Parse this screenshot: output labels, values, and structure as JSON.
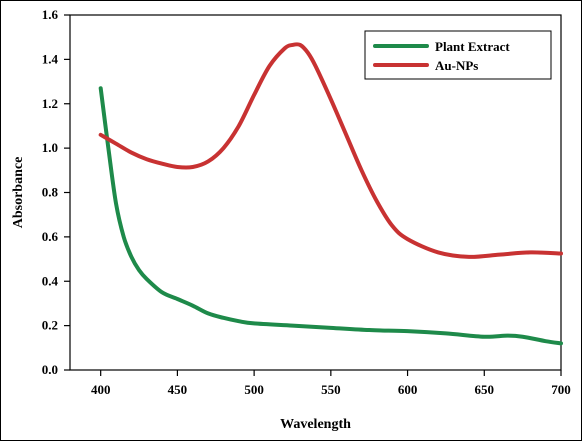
{
  "chart_data": {
    "type": "line",
    "xlabel": "Wavelength",
    "ylabel": "Absorbance",
    "xlim": [
      380,
      700
    ],
    "ylim": [
      0.0,
      1.6
    ],
    "x_ticks": [
      "400",
      "450",
      "500",
      "550",
      "600",
      "650",
      "700"
    ],
    "y_ticks": [
      "0.0",
      "0.2",
      "0.4",
      "0.6",
      "0.8",
      "1.0",
      "1.2",
      "1.4",
      "1.6"
    ],
    "grid": false,
    "legend_position": "top-right",
    "series": [
      {
        "name": "Plant Extract",
        "color": "#1e8a4a",
        "x": [
          400,
          405,
          410,
          415,
          420,
          425,
          430,
          440,
          450,
          460,
          470,
          480,
          490,
          500,
          525,
          550,
          575,
          600,
          625,
          650,
          665,
          675,
          690,
          700
        ],
        "y": [
          1.27,
          1.0,
          0.75,
          0.6,
          0.51,
          0.45,
          0.41,
          0.35,
          0.32,
          0.29,
          0.255,
          0.235,
          0.22,
          0.21,
          0.2,
          0.19,
          0.18,
          0.175,
          0.165,
          0.15,
          0.155,
          0.15,
          0.13,
          0.12
        ]
      },
      {
        "name": "Au-NPs",
        "color": "#c83232",
        "x": [
          400,
          410,
          420,
          430,
          440,
          450,
          460,
          470,
          480,
          490,
          500,
          510,
          520,
          525,
          530,
          535,
          540,
          550,
          560,
          570,
          580,
          590,
          600,
          620,
          640,
          660,
          680,
          700
        ],
        "y": [
          1.06,
          1.02,
          0.98,
          0.95,
          0.93,
          0.915,
          0.915,
          0.94,
          1.0,
          1.1,
          1.24,
          1.37,
          1.45,
          1.465,
          1.465,
          1.43,
          1.37,
          1.22,
          1.06,
          0.9,
          0.76,
          0.65,
          0.59,
          0.53,
          0.51,
          0.52,
          0.53,
          0.525
        ]
      }
    ]
  }
}
